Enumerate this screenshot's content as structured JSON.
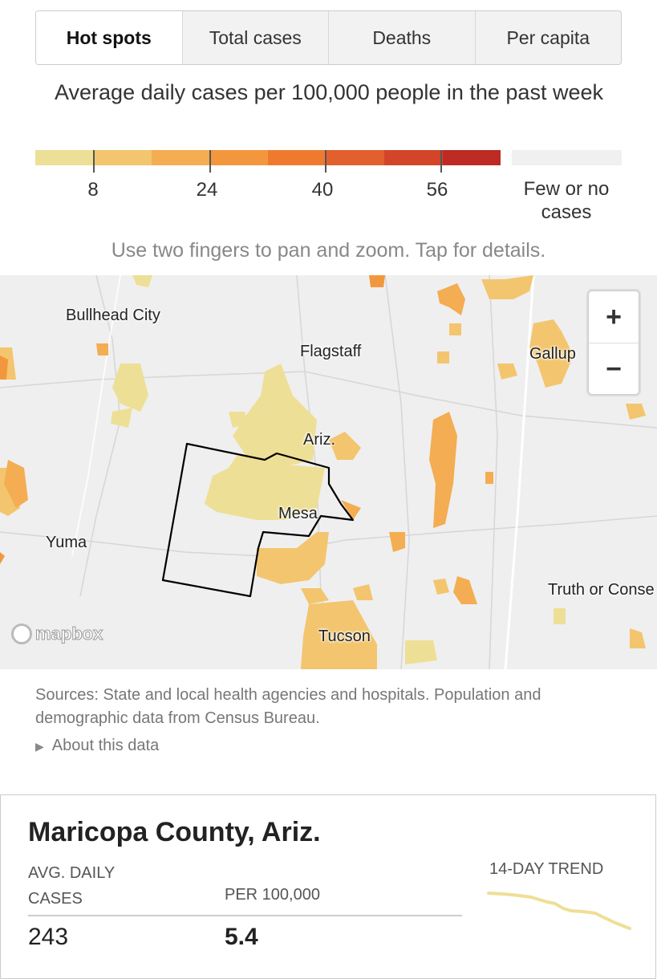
{
  "tabs": [
    "Hot spots",
    "Total cases",
    "Deaths",
    "Per capita"
  ],
  "legend": {
    "title": "Average daily cases per 100,000 people in the past week",
    "ticks": [
      "8",
      "24",
      "40",
      "56"
    ],
    "colors": [
      "#eedf96",
      "#f3c56e",
      "#f4ad52",
      "#f3973e",
      "#ef7a2f",
      "#e2602d",
      "#d34528",
      "#bd2b24"
    ],
    "no_data_color": "#f0f0f0",
    "no_data_label": "Few or no cases"
  },
  "instructions": "Use two fingers to pan and zoom. Tap for details.",
  "map": {
    "labels": {
      "bullhead": "Bullhead City",
      "flagstaff": "Flagstaff",
      "gallup": "Gallup",
      "ariz": "Ariz.",
      "mesa": "Mesa",
      "yuma": "Yuma",
      "truth": "Truth or Conse",
      "tucson": "Tucson"
    },
    "zoom_in": "+",
    "zoom_out": "−",
    "attribution": "mapbox"
  },
  "sources": "Sources: State and local health agencies and hospitals. Population and demographic data from Census Bureau.",
  "about": "About this data",
  "card": {
    "county": "Maricopa County, Ariz.",
    "avg_label": "AVG. DAILY CASES",
    "per_label": "PER 100,000",
    "avg_value": "243",
    "per_value": "5.4",
    "trend_label": "14-DAY TREND",
    "trend_color": "#eedf96"
  }
}
